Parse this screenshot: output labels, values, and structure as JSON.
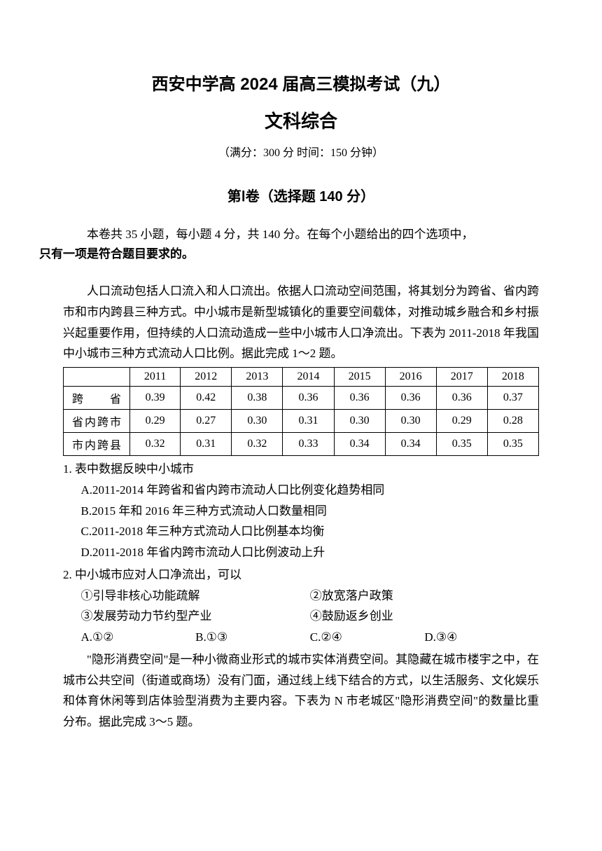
{
  "header": {
    "title_main": "西安中学高 2024 届高三模拟考试（九）",
    "title_sub": "文科综合",
    "exam_info": "（满分：300 分  时间：150 分钟）",
    "section_title": "第Ⅰ卷（选择题  140 分）"
  },
  "instructions": {
    "line1": "本卷共 35 小题，每小题 4 分，共 140 分。在每个小题给出的四个选项中，",
    "line2_bold": "只有一项是符合题目要求的。"
  },
  "passage1": "人口流动包括人口流入和人口流出。依据人口流动空间范围，将其划分为跨省、省内跨市和市内跨县三种方式。中小城市是新型城镇化的重要空间载体，对推动城乡融合和乡村振兴起重要作用，但持续的人口流动造成一些中小城市人口净流出。下表为 2011-2018 年我国中小城市三种方式流动人口比例。据此完成 1～2 题。",
  "table1": {
    "years": [
      "2011",
      "2012",
      "2013",
      "2014",
      "2015",
      "2016",
      "2017",
      "2018"
    ],
    "rows": [
      {
        "label": "跨省",
        "values": [
          "0.39",
          "0.42",
          "0.38",
          "0.36",
          "0.36",
          "0.36",
          "0.36",
          "0.37"
        ]
      },
      {
        "label": "省内跨市",
        "values": [
          "0.29",
          "0.27",
          "0.30",
          "0.31",
          "0.30",
          "0.30",
          "0.29",
          "0.28"
        ]
      },
      {
        "label": "市内跨县",
        "values": [
          "0.32",
          "0.31",
          "0.32",
          "0.33",
          "0.34",
          "0.34",
          "0.35",
          "0.35"
        ]
      }
    ]
  },
  "q1": {
    "stem": "1. 表中数据反映中小城市",
    "options": [
      "A.2011-2014 年跨省和省内跨市流动人口比例变化趋势相同",
      "B.2015 年和 2016 年三种方式流动人口数量相同",
      "C.2011-2018 年三种方式流动人口比例基本均衡",
      "D.2011-2018 年省内跨市流动人口比例波动上升"
    ]
  },
  "q2": {
    "stem": "2. 中小城市应对人口净流出，可以",
    "items_row1": [
      "①引导非核心功能疏解",
      "②放宽落户政策"
    ],
    "items_row2": [
      "③发展劳动力节约型产业",
      "④鼓励返乡创业"
    ],
    "choices": [
      "A.①②",
      "B.①③",
      "C.②④",
      "D.③④"
    ]
  },
  "passage2": "\"隐形消费空间\"是一种小微商业形式的城市实体消费空间。其隐藏在城市楼宇之中，在城市公共空间（街道或商场）没有门面，通过线上线下结合的方式，以生活服务、文化娱乐和体育休闲等到店体验型消费为主要内容。下表为 N 市老城区\"隐形消费空间\"的数量比重分布。据此完成 3～5 题。"
}
